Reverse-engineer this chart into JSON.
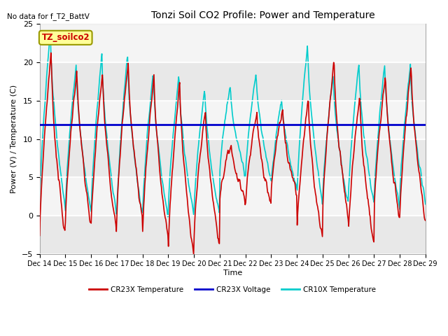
{
  "title": "Tonzi Soil CO2 Profile: Power and Temperature",
  "no_data_text": "No data for f_T2_BattV",
  "ylabel": "Power (V) / Temperature (C)",
  "xlabel": "Time",
  "ylim": [
    -5,
    25
  ],
  "yticks": [
    -5,
    0,
    5,
    10,
    15,
    20,
    25
  ],
  "voltage_value": 11.9,
  "n_days": 15,
  "xtick_labels": [
    "Dec 14",
    "Dec 15",
    "Dec 16",
    "Dec 17",
    "Dec 18",
    "Dec 19",
    "Dec 20",
    "Dec 21",
    "Dec 22",
    "Dec 23",
    "Dec 24",
    "Dec 25",
    "Dec 26",
    "Dec 27",
    "Dec 28",
    "Dec 29"
  ],
  "inner_bg_color": "#e8e8e8",
  "band_color": "#d0d0d0",
  "cr23x_color": "#cc0000",
  "cr10x_color": "#00cccc",
  "voltage_color": "#0000cc",
  "annotation_bg": "#ffff99",
  "annotation_border": "#999900",
  "annotation_text": "TZ_soilco2",
  "annotation_color": "#cc0000",
  "cr23x_peaks": [
    21.5,
    19.2,
    18.8,
    20.0,
    18.5,
    17.5,
    14.0,
    9.5,
    13.5,
    14.2,
    15.5,
    20.5,
    15.8,
    18.5,
    19.8
  ],
  "cr23x_troughs": [
    -3.0,
    -1.5,
    -2.0,
    -0.3,
    -3.0,
    -5.0,
    -3.5,
    2.0,
    1.5,
    2.5,
    -3.0,
    -0.5,
    -3.5,
    -0.2,
    -1.0
  ],
  "cr10x_peaks": [
    24.2,
    19.8,
    21.2,
    21.0,
    18.8,
    18.3,
    16.6,
    17.1,
    18.8,
    15.5,
    22.5,
    18.5,
    20.0,
    20.0,
    19.5
  ],
  "cr10x_troughs": [
    0.8,
    0.5,
    -0.2,
    -0.2,
    -0.5,
    0.0,
    0.2,
    5.2,
    4.5,
    3.5,
    1.5,
    1.5,
    1.5,
    1.0,
    1.8
  ],
  "peak_phase": 0.45,
  "noise_seed": 7
}
